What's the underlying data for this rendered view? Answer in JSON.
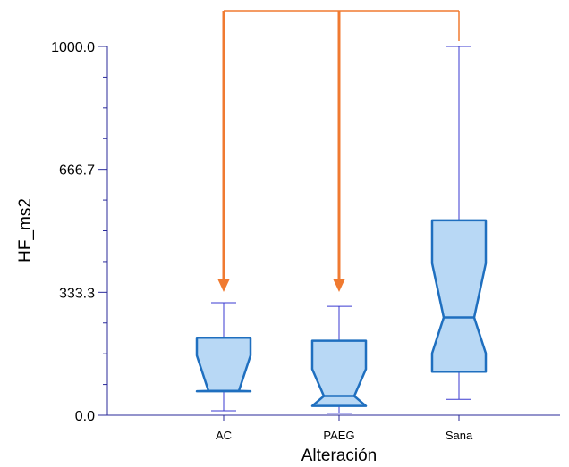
{
  "chart_data": {
    "type": "box",
    "xlabel": "Alteración",
    "ylabel": "HF_ms2",
    "ylim": [
      0,
      1000
    ],
    "yticks": [
      "0.0",
      "333.3",
      "666.7",
      "1000.0"
    ],
    "categories": [
      "AC",
      "PAEG",
      "Sana"
    ],
    "boxes": [
      {
        "category": "AC",
        "whisker_low": 12,
        "q1": 65,
        "median": 66,
        "q3": 210,
        "whisker_high": 305,
        "notch_low": 65,
        "notch_high": 162
      },
      {
        "category": "PAEG",
        "whisker_low": 5,
        "q1": 25,
        "median": 52,
        "q3": 202,
        "whisker_high": 295,
        "notch_low": 25,
        "notch_high": 125
      },
      {
        "category": "Sana",
        "whisker_low": 43,
        "q1": 118,
        "median": 265,
        "q3": 528,
        "whisker_high": 1000,
        "notch_low": 168,
        "notch_high": 412
      }
    ],
    "box_fill": "#b8d8f5",
    "box_stroke": "#1f6fbf",
    "whisker_color": "#3a3ad0",
    "axis_color": "#2a2a9a",
    "annotation_color": "#f07a30",
    "annotation": {
      "type": "bracket-with-arrows",
      "from": "Sana",
      "arrows_to": [
        "AC",
        "PAEG"
      ]
    }
  }
}
